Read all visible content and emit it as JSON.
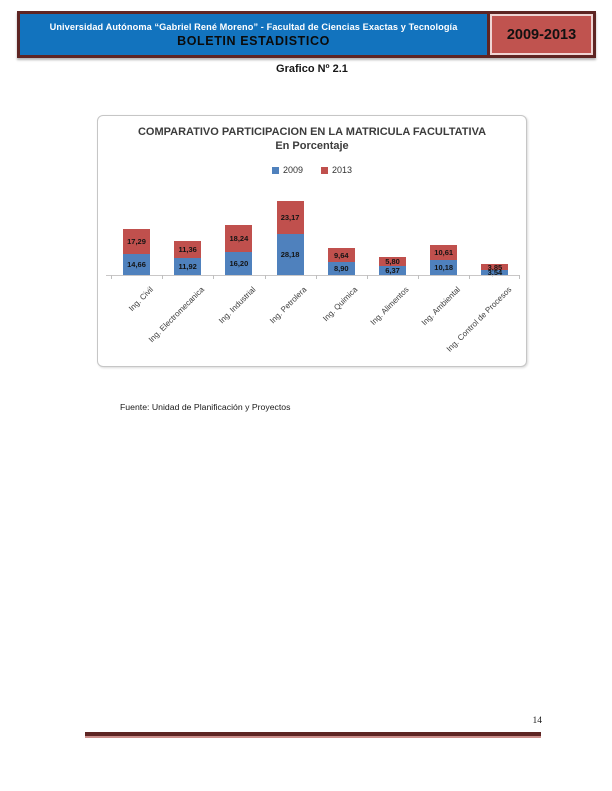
{
  "header": {
    "line1": "Universidad Autónoma “Gabriel René Moreno” - Facultad de Ciencias Exactas y Tecnología",
    "line2": "BOLETIN ESTADISTICO",
    "period": "2009-2013",
    "colors": {
      "banner_blue": "#1273BE",
      "banner_red": "#C0534F",
      "border_maroon": "#5E2523"
    }
  },
  "figure_label": "Grafico Nº 2.1",
  "source_note": "Fuente: Unidad de Planificación y Proyectos",
  "page_number": "14",
  "chart_data": {
    "type": "bar",
    "stacked": true,
    "title": "COMPARATIVO PARTICIPACION EN LA MATRICULA FACULTATIVA",
    "subtitle": "En Porcentaje",
    "categories": [
      "Ing. Civil",
      "Ing. Electromecanica",
      "Ing. Industrial",
      "Ing. Petrolera",
      "Ing. Quimica",
      "Ing. Alimentos",
      "Ing. Ambiental",
      "Ing. Control de Procesos"
    ],
    "series": [
      {
        "name": "2009",
        "color": "#4F81BD",
        "values": [
          14.66,
          11.92,
          16.2,
          28.18,
          8.9,
          6.37,
          10.18,
          3.54
        ]
      },
      {
        "name": "2013",
        "color": "#C0504D",
        "values": [
          17.29,
          11.36,
          18.24,
          23.17,
          9.64,
          5.8,
          10.61,
          3.85
        ]
      }
    ],
    "value_labels": true,
    "decimal_separator": ",",
    "legend_position": "top",
    "grid": false,
    "axis_color": "#C9C7C7"
  }
}
